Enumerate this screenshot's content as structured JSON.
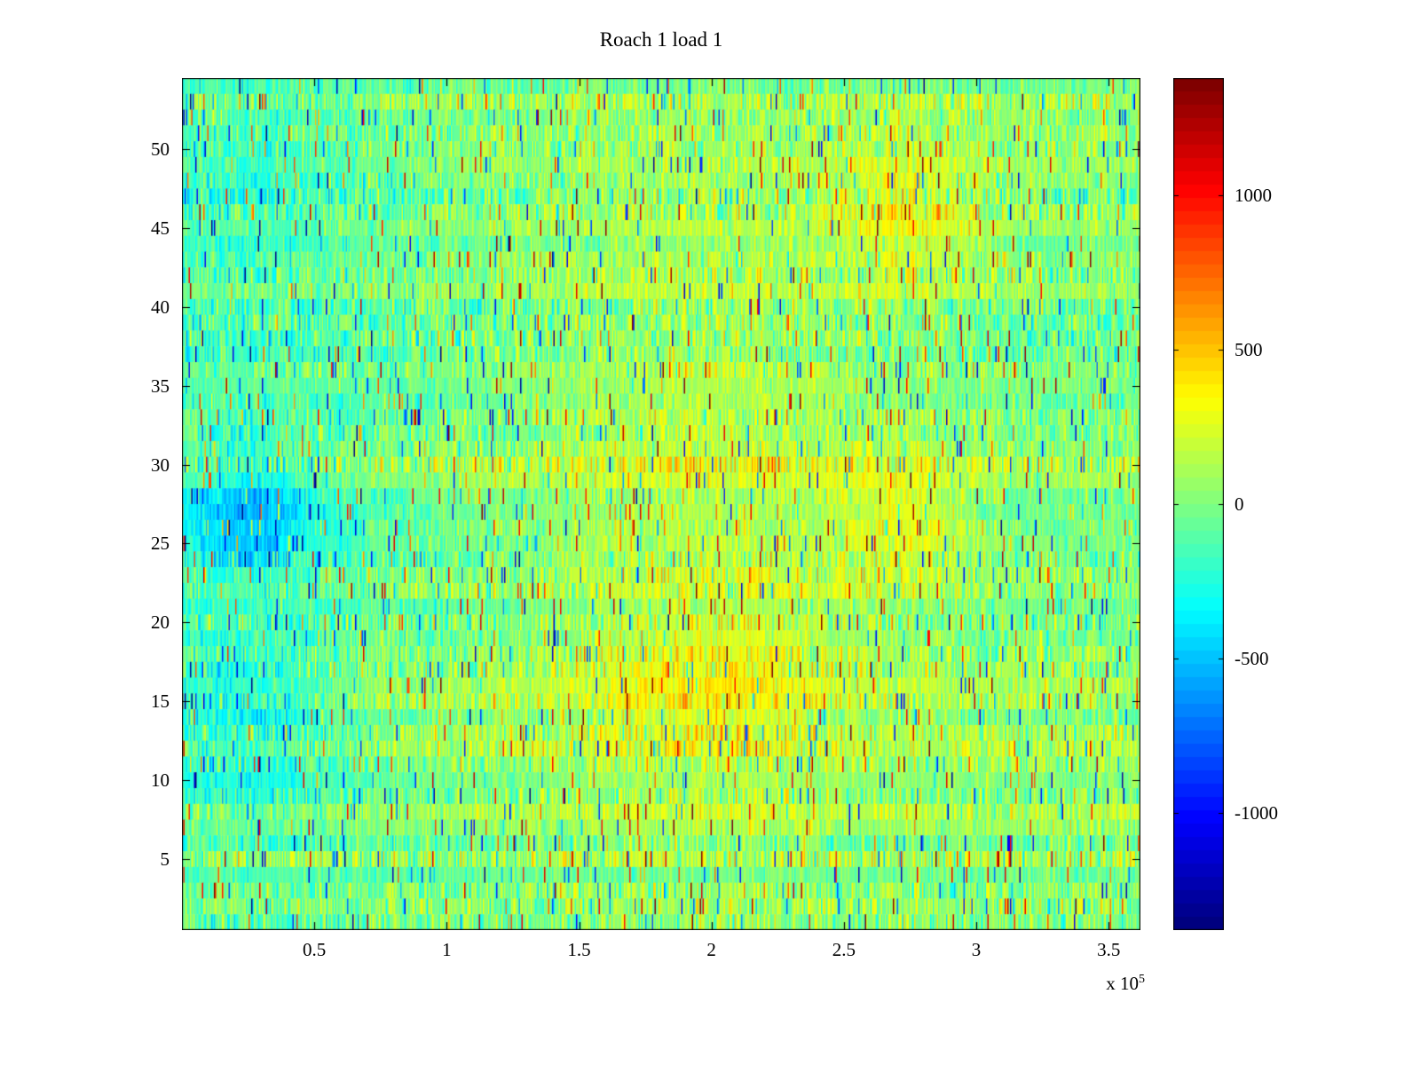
{
  "chart_data": {
    "type": "heatmap",
    "title": "Roach 1 load 1",
    "x_range": [
      0,
      362000
    ],
    "x_ticks": [
      50000,
      100000,
      150000,
      200000,
      250000,
      300000,
      350000
    ],
    "x_tick_labels": [
      "0.5",
      "1",
      "1.5",
      "2",
      "2.5",
      "3",
      "3.5"
    ],
    "x_scale_label": {
      "base": "x 10",
      "exponent": "5"
    },
    "y_range": [
      0.5,
      54.5
    ],
    "y_ticks": [
      5,
      10,
      15,
      20,
      25,
      30,
      35,
      40,
      45,
      50
    ],
    "y_tick_labels": [
      "5",
      "10",
      "15",
      "20",
      "25",
      "30",
      "35",
      "40",
      "45",
      "50"
    ],
    "rows": 54,
    "cols": 720,
    "colormap": "jet",
    "color_levels": 64,
    "clim": [
      -1380,
      1380
    ],
    "colorbar_ticks": [
      1000,
      500,
      0,
      -500,
      -1000
    ],
    "colorbar_tick_labels": [
      "1000",
      "500",
      "0",
      "-500",
      "-1000"
    ],
    "grid": false,
    "legend": "none",
    "noise": {
      "seed": 1337,
      "base_offset": 40,
      "std": 480,
      "row_offset_range": 220,
      "spike_probability": 0.06,
      "spike_min": 350,
      "spike_max": 1250
    },
    "bias_blobs": [
      {
        "x": 25000,
        "y": 26.5,
        "sx": 18000,
        "sy": 2.5,
        "amp": -420
      },
      {
        "x": 20000,
        "y": 15.5,
        "sx": 25000,
        "sy": 2.0,
        "amp": -260
      },
      {
        "x": 25000,
        "y": 10.5,
        "sx": 30000,
        "sy": 1.8,
        "amp": -200
      },
      {
        "x": 30000,
        "y": 48.0,
        "sx": 30000,
        "sy": 4.0,
        "amp": -160
      },
      {
        "x": 10000,
        "y": 27.0,
        "sx": 60000,
        "sy": 30.0,
        "amp": -110
      },
      {
        "x": 200000,
        "y": 27.0,
        "sx": 45000,
        "sy": 14.0,
        "amp": 170
      },
      {
        "x": 272000,
        "y": 26.5,
        "sx": 18000,
        "sy": 3.0,
        "amp": 260
      },
      {
        "x": 272000,
        "y": 46.0,
        "sx": 20000,
        "sy": 3.5,
        "amp": 240
      },
      {
        "x": 205000,
        "y": 16.0,
        "sx": 30000,
        "sy": 3.0,
        "amp": 160
      }
    ],
    "colors": {
      "background": "#ffffff",
      "axis": "#000000"
    }
  }
}
